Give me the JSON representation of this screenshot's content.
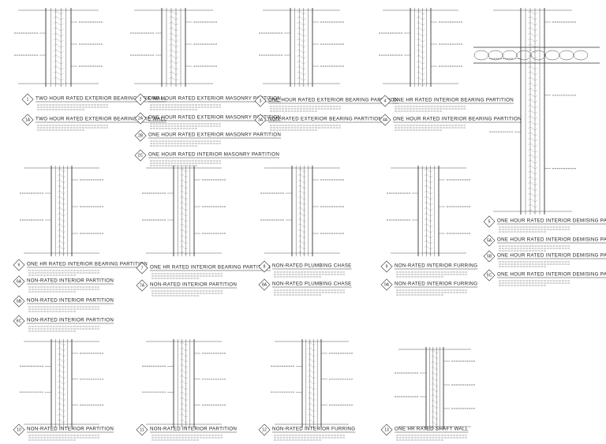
{
  "details": [
    {
      "number": "1",
      "title": "TWO HOUR RATED EXTERIOR BEARING FIRE WALL"
    },
    {
      "number": "1A",
      "title": "TWO HOUR RATED EXTERIOR BEARING FIRE WALL"
    },
    {
      "number": "2",
      "title": "ONE HOUR RATED EXTERIOR MASONRY PARTITION"
    },
    {
      "number": "2A",
      "title": "ONE HOUR RATED EXTERIOR MASONRY PARTITION"
    },
    {
      "number": "2B",
      "title": "ONE HOUR RATED EXTERIOR MASONRY PARTITION"
    },
    {
      "number": "2C",
      "title": "ONE HOUR RATED INTERIOR MASONRY PARTITION"
    },
    {
      "number": "3",
      "title": "ONE HOUR RATED EXTERIOR BEARING PARTITION"
    },
    {
      "number": "3A",
      "title": "NON-RATED EXTERIOR BEARING PARTITION"
    },
    {
      "number": "4",
      "title": "ONE HR RATED INTERIOR BEARING PARTITION"
    },
    {
      "number": "4A",
      "title": "ONE HOUR RATED INTERIOR BEARING PARTITION"
    },
    {
      "number": "5",
      "title": "ONE HOUR RATED INTERIOR DEMISING PARTITION"
    },
    {
      "number": "5A",
      "title": "ONE HOUR RATED INTERIOR DEMISING PARTITION"
    },
    {
      "number": "5B",
      "title": "ONE HOUR RATED INTERIOR DEMISING PARTITION"
    },
    {
      "number": "5C",
      "title": "ONE HOUR RATED INTERIOR DEMISING PARTITION"
    },
    {
      "number": "6",
      "title": "ONE HR RATED INTERIOR BEARING PARTITION"
    },
    {
      "number": "6A",
      "title": "NON-RATED INTERIOR PARTITION"
    },
    {
      "number": "6B",
      "title": "NON-RATED INTERIOR PARTITION"
    },
    {
      "number": "6C",
      "title": "NON-RATED INTERIOR PARTITION"
    },
    {
      "number": "7",
      "title": "ONE HR RATED INTERIOR BEARING PARTITION"
    },
    {
      "number": "7A",
      "title": "NON-RATED INTERIOR PARTITION"
    },
    {
      "number": "8",
      "title": "NON-RATED PLUMBING CHASE"
    },
    {
      "number": "8A",
      "title": "NON-RATED PLUMBING CHASE"
    },
    {
      "number": "9",
      "title": "NON-RATED INTERIOR FURRING"
    },
    {
      "number": "9A",
      "title": "NON-RATED INTERIOR FURRING"
    },
    {
      "number": "10",
      "title": "NON-RATED INTERIOR PARTITION"
    },
    {
      "number": "11",
      "title": "NON-RATED INTERIOR PARTITION"
    },
    {
      "number": "12",
      "title": "NON-RATED INTERIOR FURRING"
    },
    {
      "number": "13",
      "title": "ONE HR RATED SHAFT WALL"
    }
  ]
}
